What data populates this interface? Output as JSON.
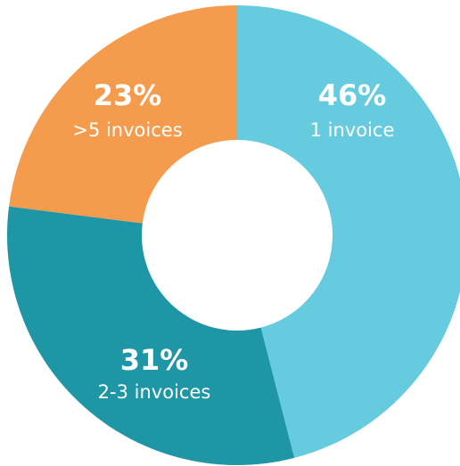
{
  "chart_data": {
    "type": "pie",
    "title": "",
    "slices": [
      {
        "label": "1 invoice",
        "percent_label": "46%",
        "value": 46,
        "color": "#67cbe0"
      },
      {
        "label": "2-3 invoices",
        "percent_label": "31%",
        "value": 31,
        "color": "#1e96a5"
      },
      {
        "label": ">5 invoices",
        "percent_label": "23%",
        "value": 23,
        "color": "#f59b4d"
      }
    ],
    "donut": true
  }
}
